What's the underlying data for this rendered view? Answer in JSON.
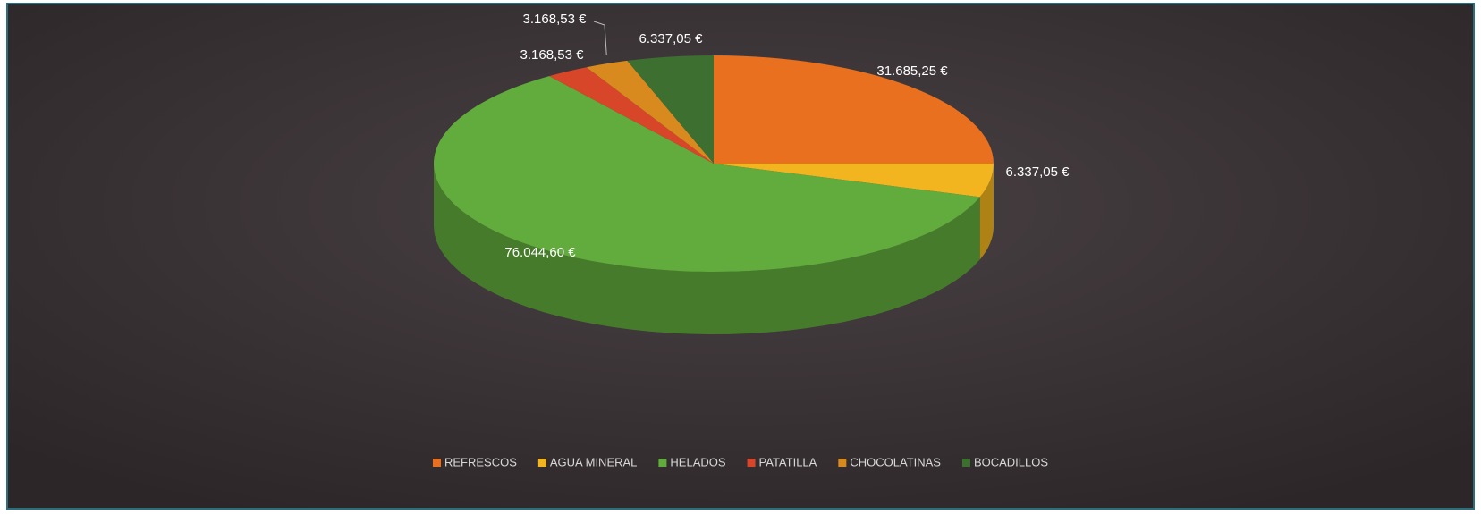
{
  "chart_data": {
    "type": "pie3d",
    "categories": [
      "REFRESCOS",
      "AGUA MINERAL",
      "HELADOS",
      "PATATILLA",
      "CHOCOLATINAS",
      "BOCADILLOS"
    ],
    "values": [
      31685.25,
      6337.05,
      76044.6,
      3168.53,
      3168.53,
      6337.05
    ],
    "value_labels": [
      "31.685,25 €",
      "6.337,05 €",
      "76.044,60 €",
      "3.168,53 €",
      "3.168,53 €",
      "6.337,05 €"
    ],
    "colors": [
      "#e8701e",
      "#f3b51f",
      "#62ab3d",
      "#d8462a",
      "#d98a1f",
      "#3d7030"
    ],
    "legend": "bottom"
  }
}
